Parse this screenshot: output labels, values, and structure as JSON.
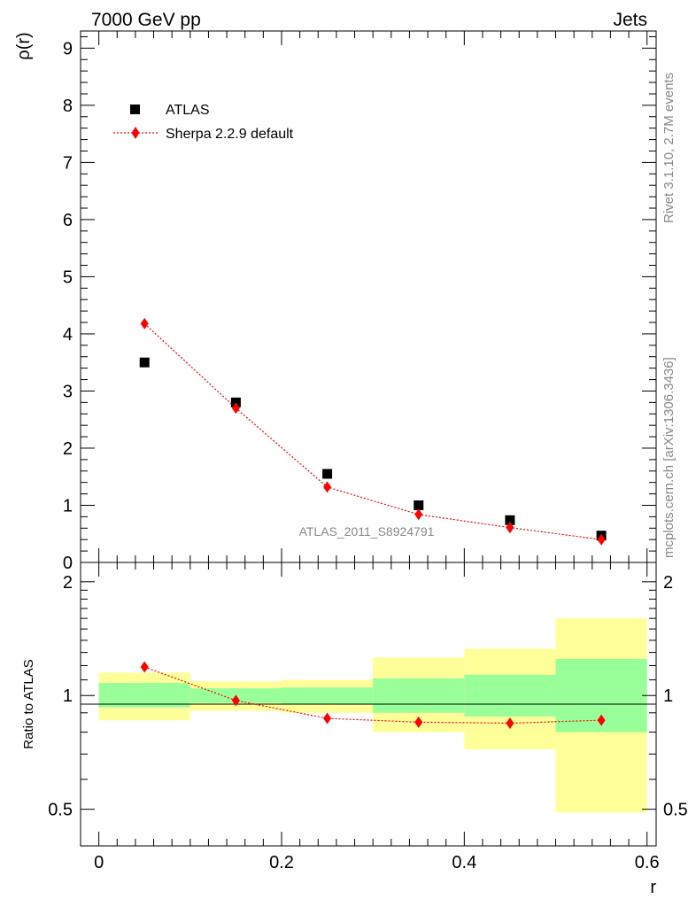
{
  "header": {
    "left_title": "7000 GeV pp",
    "right_title": "Jets"
  },
  "side_text": {
    "top": "Rivet 3.1.10,  2.7M events",
    "bottom": "mcplots.cern.ch [arXiv:1306.3436]"
  },
  "analysis_label": "ATLAS_2011_S8924791",
  "colors": {
    "data": "#000000",
    "mc": "#ff0000",
    "band_inner": "#99ff99",
    "band_outer": "#ffff99",
    "grey_text": "#888888"
  },
  "chart_data": [
    {
      "type": "scatter",
      "panel": "main",
      "ylabel": "ρ(r)",
      "xlim": [
        -0.02,
        0.61
      ],
      "ylim": [
        0,
        9.3
      ],
      "yticks": [
        0,
        1,
        2,
        3,
        4,
        5,
        6,
        7,
        8,
        9
      ],
      "ytick_labels": [
        "0",
        "1",
        "2",
        "3",
        "4",
        "5",
        "6",
        "7",
        "8",
        "9"
      ],
      "legend_position": "top-left",
      "x": [
        0.05,
        0.15,
        0.25,
        0.35,
        0.45,
        0.55
      ],
      "series": [
        {
          "name": "ATLAS",
          "marker": "square",
          "values": [
            3.5,
            2.8,
            1.55,
            1.0,
            0.74,
            0.47
          ]
        },
        {
          "name": "Sherpa 2.2.9 default",
          "marker": "diamond",
          "line": "dotted",
          "values": [
            4.18,
            2.7,
            1.32,
            0.84,
            0.61,
            0.4
          ]
        }
      ]
    },
    {
      "type": "scatter",
      "panel": "ratio",
      "ylabel": "Ratio to ATLAS",
      "xlabel": "r",
      "xlim": [
        -0.02,
        0.61
      ],
      "ylim": [
        0.4,
        2.25
      ],
      "yscale": "log",
      "yticks": [
        0.5,
        1,
        2
      ],
      "ytick_labels": [
        "0.5",
        "1",
        "2"
      ],
      "xticks": [
        0,
        0.2,
        0.4,
        0.6
      ],
      "xtick_labels": [
        "0",
        "0.2",
        "0.4",
        "0.6"
      ],
      "x": [
        0.05,
        0.15,
        0.25,
        0.35,
        0.45,
        0.55
      ],
      "bins": [
        [
          0,
          0.1
        ],
        [
          0.1,
          0.2
        ],
        [
          0.2,
          0.3
        ],
        [
          0.3,
          0.4
        ],
        [
          0.4,
          0.5
        ],
        [
          0.5,
          0.6
        ]
      ],
      "band_inner": [
        [
          0.93,
          1.08
        ],
        [
          0.955,
          1.045
        ],
        [
          0.95,
          1.05
        ],
        [
          0.9,
          1.11
        ],
        [
          0.88,
          1.135
        ],
        [
          0.8,
          1.25
        ]
      ],
      "band_outer": [
        [
          0.86,
          1.15
        ],
        [
          0.91,
          1.09
        ],
        [
          0.9,
          1.1
        ],
        [
          0.8,
          1.26
        ],
        [
          0.72,
          1.33
        ],
        [
          0.49,
          1.6
        ]
      ],
      "series": [
        {
          "name": "Sherpa 2.2.9 default",
          "marker": "diamond",
          "line": "dotted",
          "values": [
            1.19,
            0.97,
            0.87,
            0.85,
            0.845,
            0.86
          ]
        }
      ]
    }
  ]
}
